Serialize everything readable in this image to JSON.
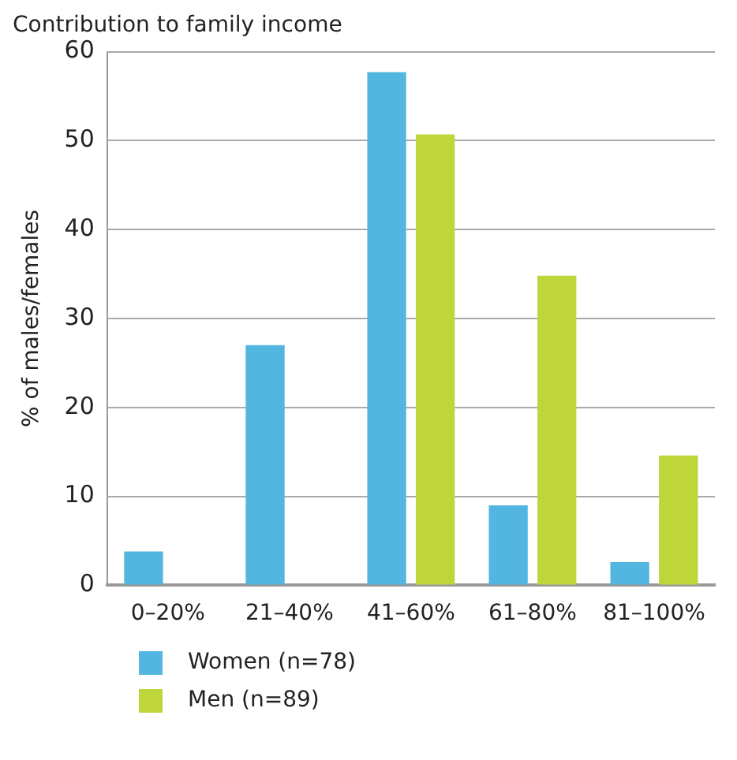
{
  "chart_data": {
    "type": "bar",
    "title": "Contribution to family income",
    "ylabel": "% of males/females",
    "categories": [
      "0–20%",
      "21–40%",
      "41–60%",
      "61–80%",
      "81–100%"
    ],
    "series": [
      {
        "name": "Women (n=78)",
        "color": "#53b6e0",
        "values": [
          3.8,
          27,
          57.7,
          9,
          2.6
        ]
      },
      {
        "name": "Men (n=89)",
        "color": "#bed63a",
        "values": [
          0,
          0,
          50.7,
          34.8,
          14.6
        ]
      }
    ],
    "ylim": [
      0,
      60
    ],
    "yticks": [
      0,
      10,
      20,
      30,
      40,
      50,
      60
    ],
    "grid": "y",
    "legend": "bottom left"
  }
}
